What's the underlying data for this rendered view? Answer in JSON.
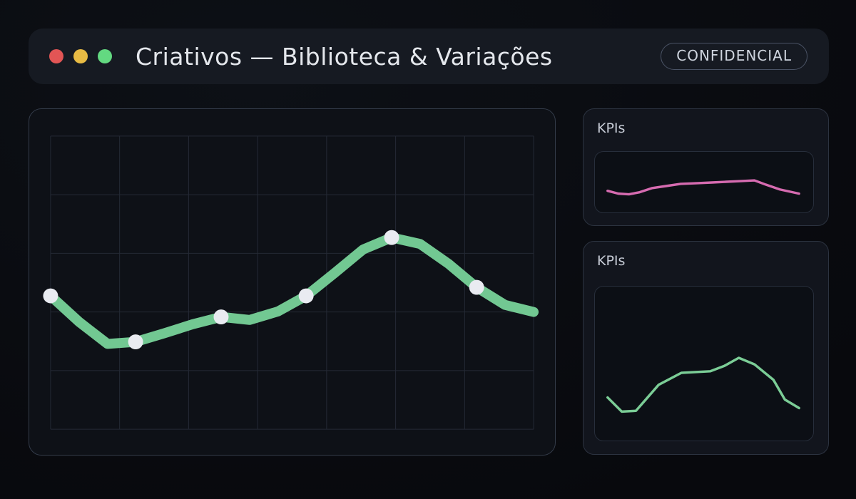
{
  "titlebar": {
    "title": "Criativos — Biblioteca & Variações",
    "badge": "CONFIDENCIAL",
    "traffic_lights": [
      {
        "name": "close",
        "color": "#e25555"
      },
      {
        "name": "minimize",
        "color": "#e8bb44"
      },
      {
        "name": "zoom",
        "color": "#63d981"
      }
    ]
  },
  "kpi_panels": [
    {
      "title": "KPIs"
    },
    {
      "title": "KPIs"
    }
  ],
  "colors": {
    "page_bg": "#0d1016",
    "page_bg_dark": "#08090d",
    "titlebar_bg": "#161a22",
    "title_text": "#e4e7ec",
    "badge_text": "#cfd5df",
    "badge_border": "#4a5365",
    "panel_bg": "#0e1117",
    "panel_border": "#333b49",
    "side_panel_bg": "#12151d",
    "side_panel_border": "#2c3340",
    "spark_card_bg": "#0c0f15",
    "spark_card_border": "#272e3b",
    "kpi_text": "#c7ccd6",
    "grid": "#242a35",
    "main_line": "#72c892",
    "marker": "#e9ebf1",
    "spark_pink": "#d66bb0",
    "spark_green": "#7bcd96"
  },
  "chart_data": [
    {
      "name": "main-trend",
      "type": "line",
      "title": "",
      "xlabel": "",
      "ylabel": "",
      "ylim": [
        0,
        100
      ],
      "grid": true,
      "legend": false,
      "axis_labels_visible": false,
      "note": "no axis tick labels visible; values estimated 0-100 from plot height",
      "x_pct": [
        0,
        5.9,
        11.8,
        17.6,
        23.5,
        29.4,
        35.3,
        41.2,
        47.1,
        52.9,
        58.8,
        64.7,
        70.6,
        76.5,
        82.4,
        88.2,
        94.1,
        100
      ],
      "values": [
        45.5,
        36.6,
        29.1,
        29.8,
        32.7,
        35.8,
        38.3,
        37.3,
        40.2,
        45.5,
        53.3,
        61.3,
        65.4,
        63.2,
        56.4,
        48.4,
        42.4,
        40.0
      ],
      "marker_indices": [
        0,
        3,
        6,
        9,
        12,
        15
      ],
      "color": "#72c892",
      "marker_color": "#e9ebf1"
    },
    {
      "name": "kpi-sparkline-top",
      "type": "line",
      "title": "KPIs",
      "grid": false,
      "legend": false,
      "ylim": [
        0,
        100
      ],
      "x_pct": [
        5.8,
        10.7,
        15.6,
        20.5,
        26.3,
        32.8,
        39.3,
        47.1,
        53.6,
        60.1,
        66.6,
        73.1,
        78.2,
        84.7,
        93.5
      ],
      "values": [
        35.6,
        31.0,
        29.9,
        33.3,
        40.2,
        43.7,
        47.1,
        48.3,
        49.4,
        50.6,
        51.7,
        52.9,
        46.0,
        37.9,
        31.0
      ],
      "marker_indices": [],
      "color": "#d66bb0"
    },
    {
      "name": "kpi-sparkline-bottom",
      "type": "line",
      "title": "KPIs",
      "grid": false,
      "legend": false,
      "ylim": [
        0,
        100
      ],
      "x_pct": [
        5.8,
        12.3,
        18.8,
        29.2,
        39.6,
        52.9,
        59.4,
        65.9,
        73.1,
        81.8,
        87.0,
        93.5
      ],
      "values": [
        28.0,
        18.8,
        19.3,
        36.2,
        44.0,
        45.0,
        48.6,
        53.7,
        49.5,
        39.4,
        26.6,
        21.1
      ],
      "marker_indices": [],
      "color": "#7bcd96"
    }
  ]
}
